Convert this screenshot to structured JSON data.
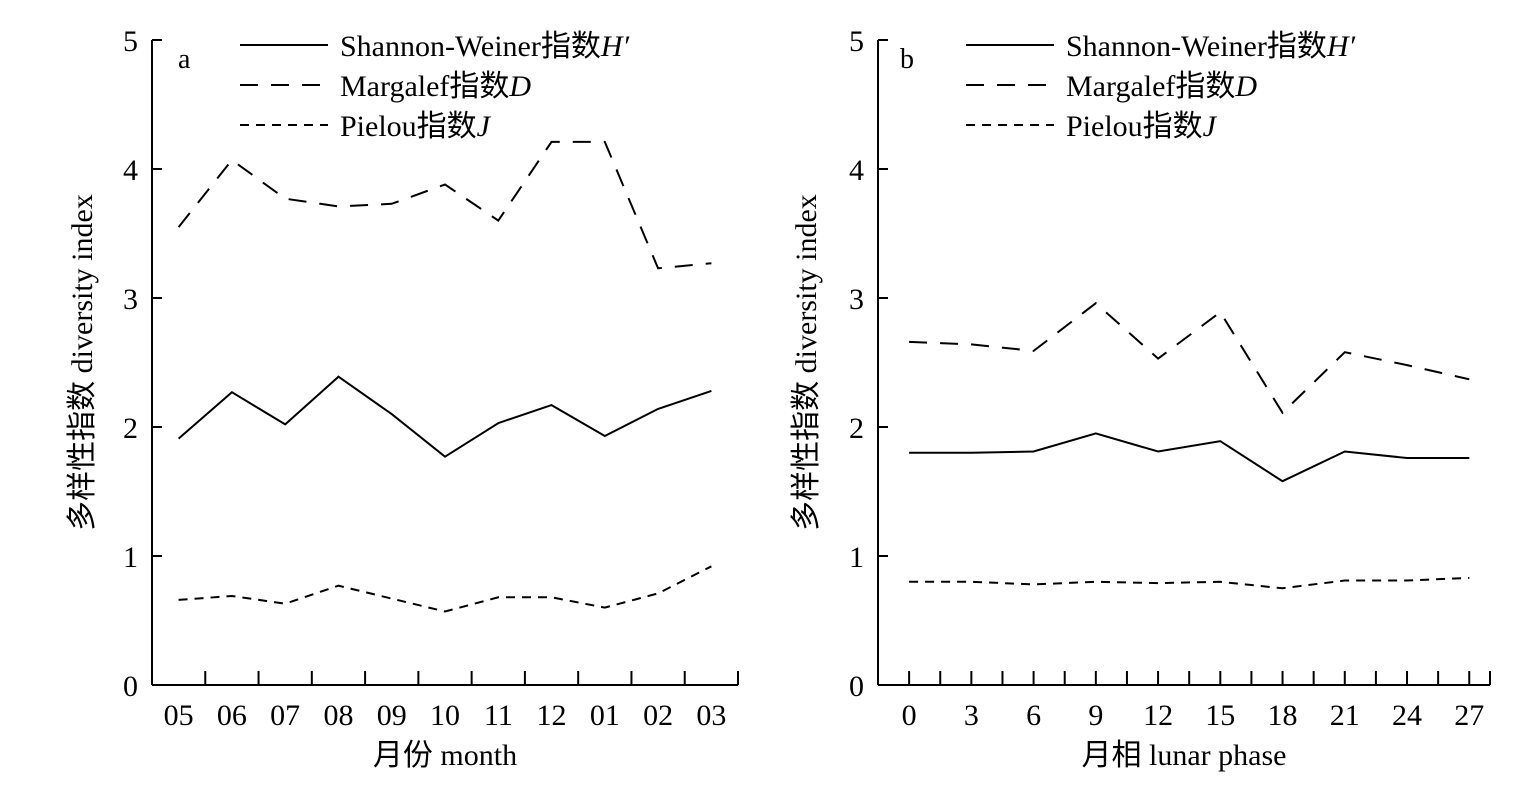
{
  "chart_data": [
    {
      "type": "line",
      "panel_label": "a",
      "xlabel": "月份 month",
      "ylabel": "多样性指数 diversity index",
      "categories": [
        "05",
        "06",
        "07",
        "08",
        "09",
        "10",
        "11",
        "12",
        "01",
        "02",
        "03"
      ],
      "ylim": [
        0,
        5
      ],
      "yticks": [
        "0",
        "1",
        "2",
        "3",
        "4",
        "5"
      ],
      "grid": false,
      "legend_position": "top",
      "series": [
        {
          "name": "Shannon-Weiner指数H′",
          "name_prefix": "Shannon-Weiner指数",
          "name_var": "H′",
          "style": "solid",
          "values": [
            1.91,
            2.27,
            2.02,
            2.39,
            2.1,
            1.77,
            2.03,
            2.17,
            1.93,
            2.14,
            2.28
          ]
        },
        {
          "name": "Margalef指数D",
          "name_prefix": "Margalef指数",
          "name_var": "D",
          "style": "long-dash",
          "values": [
            3.55,
            4.07,
            3.77,
            3.71,
            3.73,
            3.88,
            3.6,
            4.21,
            4.21,
            3.23,
            3.27
          ]
        },
        {
          "name": "Pielou指数J",
          "name_prefix": "Pielou指数",
          "name_var": "J",
          "style": "short-dash",
          "values": [
            0.66,
            0.69,
            0.63,
            0.77,
            0.67,
            0.57,
            0.68,
            0.68,
            0.6,
            0.71,
            0.92
          ]
        }
      ]
    },
    {
      "type": "line",
      "panel_label": "b",
      "xlabel": "月相 lunar phase",
      "ylabel": "多样性指数 diversity index",
      "categories": [
        "0",
        "3",
        "6",
        "9",
        "12",
        "15",
        "18",
        "21",
        "24",
        "27"
      ],
      "x": [
        0,
        3,
        6,
        9,
        12,
        15,
        18,
        21,
        24,
        27
      ],
      "xlim": [
        -1.5,
        28
      ],
      "ylim": [
        0,
        5
      ],
      "yticks": [
        "0",
        "1",
        "2",
        "3",
        "4",
        "5"
      ],
      "grid": false,
      "legend_position": "top",
      "series": [
        {
          "name": "Shannon-Weiner指数H′",
          "name_prefix": "Shannon-Weiner指数",
          "name_var": "H′",
          "style": "solid",
          "values": [
            1.8,
            1.8,
            1.81,
            1.95,
            1.81,
            1.89,
            1.58,
            1.81,
            1.76,
            1.76
          ]
        },
        {
          "name": "Margalef指数D",
          "name_prefix": "Margalef指数",
          "name_var": "D",
          "style": "long-dash",
          "values": [
            2.66,
            2.64,
            2.59,
            2.96,
            2.53,
            2.89,
            2.11,
            2.58,
            2.48,
            2.37
          ]
        },
        {
          "name": "Pielou指数J",
          "name_prefix": "Pielou指数",
          "name_var": "J",
          "style": "short-dash",
          "values": [
            0.8,
            0.8,
            0.78,
            0.8,
            0.79,
            0.8,
            0.75,
            0.81,
            0.81,
            0.83
          ]
        }
      ]
    }
  ]
}
